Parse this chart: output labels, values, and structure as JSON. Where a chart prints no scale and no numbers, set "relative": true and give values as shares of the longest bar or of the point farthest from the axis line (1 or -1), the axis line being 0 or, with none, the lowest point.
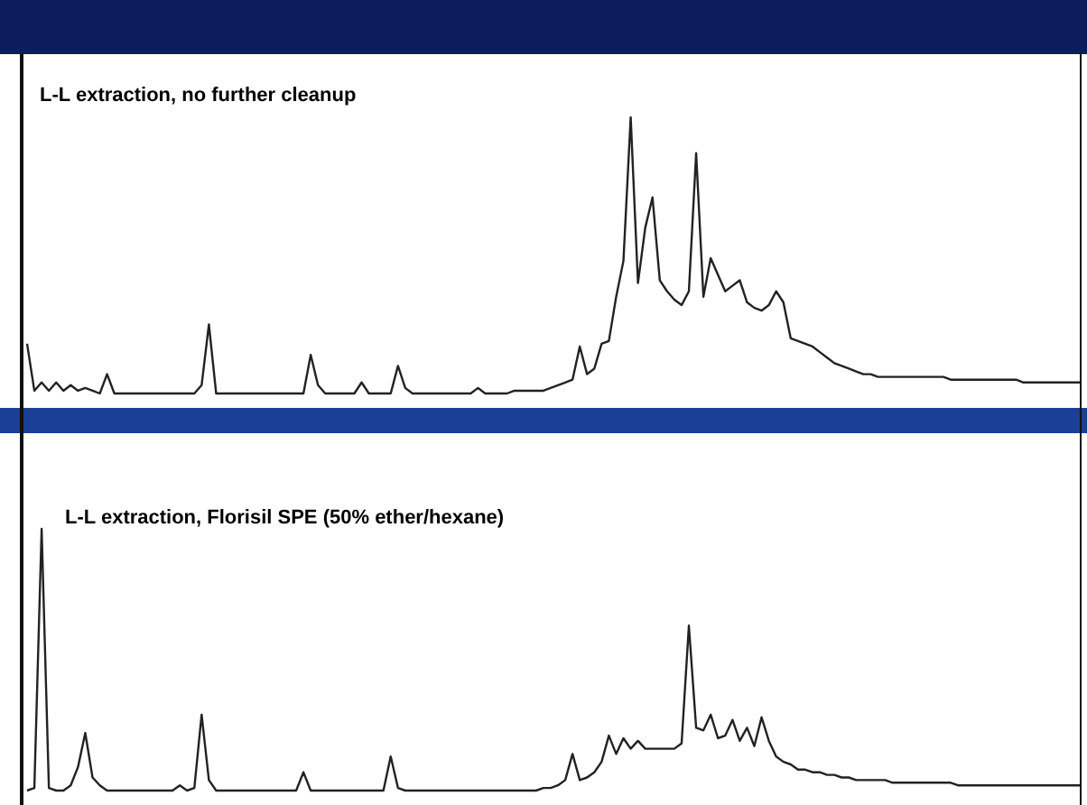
{
  "chart_data": [
    {
      "type": "line",
      "title": "L-L extraction, no further cleanup",
      "relative": true,
      "legend": false,
      "tick_labels": false,
      "categories": [
        null,
        null,
        null,
        null,
        null,
        null,
        null,
        null,
        null,
        null,
        null,
        null,
        null,
        null,
        null,
        null,
        null,
        null,
        null,
        null,
        null,
        null,
        null,
        null,
        null,
        null,
        null,
        null,
        null,
        null,
        null,
        null,
        null,
        null,
        null,
        null,
        null,
        null,
        null,
        null,
        null,
        null,
        null,
        null,
        null,
        null,
        null,
        null,
        null,
        null,
        null,
        null,
        null,
        null,
        null,
        null,
        null,
        null,
        null,
        null,
        null,
        null,
        null,
        null,
        null,
        null,
        null,
        null,
        null,
        null,
        null,
        null,
        null,
        null,
        null,
        null,
        null,
        null,
        null,
        null,
        null,
        null,
        null,
        null,
        null,
        null,
        null,
        null,
        null,
        null,
        null,
        null,
        null,
        null,
        null,
        null,
        null,
        null,
        null,
        null,
        null,
        null,
        null,
        null,
        null,
        null,
        null,
        null,
        null,
        null,
        null,
        null,
        null,
        null,
        null,
        null,
        null,
        null,
        null,
        null,
        null,
        null,
        null,
        null,
        null,
        null,
        null,
        null,
        null,
        null,
        null,
        null,
        null,
        null,
        null,
        null,
        null,
        null,
        null,
        null,
        null,
        null,
        null,
        null,
        null,
        null
      ],
      "series": [
        {
          "color": "#222222",
          "values": [
            0.18,
            0.01,
            0.04,
            0.01,
            0.04,
            0.01,
            0.03,
            0.01,
            0.02,
            0.01,
            0,
            0.07,
            0,
            0,
            0,
            0,
            0,
            0,
            0,
            0,
            0,
            0,
            0,
            0,
            0.03,
            0.25,
            0,
            0,
            0,
            0,
            0,
            0,
            0,
            0,
            0,
            0,
            0,
            0,
            0,
            0.14,
            0.03,
            0,
            0,
            0,
            0,
            0,
            0.04,
            0,
            0,
            0,
            0,
            0.1,
            0.02,
            0,
            0,
            0,
            0,
            0,
            0,
            0,
            0,
            0,
            0.02,
            0,
            0,
            0,
            0,
            0.01,
            0.01,
            0.01,
            0.01,
            0.01,
            0.02,
            0.03,
            0.04,
            0.05,
            0.17,
            0.07,
            0.09,
            0.18,
            0.19,
            0.35,
            0.48,
            1,
            0.4,
            0.6,
            0.71,
            0.41,
            0.37,
            0.34,
            0.32,
            0.37,
            0.87,
            0.35,
            0.49,
            0.43,
            0.37,
            0.39,
            0.41,
            0.33,
            0.31,
            0.3,
            0.32,
            0.37,
            0.33,
            0.2,
            0.19,
            0.18,
            0.17,
            0.15,
            0.13,
            0.11,
            0.1,
            0.09,
            0.08,
            0.07,
            0.07,
            0.06,
            0.06,
            0.06,
            0.06,
            0.06,
            0.06,
            0.06,
            0.06,
            0.06,
            0.06,
            0.05,
            0.05,
            0.05,
            0.05,
            0.05,
            0.05,
            0.05,
            0.05,
            0.05,
            0.05,
            0.04,
            0.04,
            0.04,
            0.04,
            0.04,
            0.04,
            0.04,
            0.04,
            0.04
          ]
        }
      ]
    },
    {
      "type": "line",
      "title": "L-L extraction, Florisil SPE (50% ether/hexane)",
      "relative": true,
      "legend": false,
      "tick_labels": false,
      "categories": [
        null,
        null,
        null,
        null,
        null,
        null,
        null,
        null,
        null,
        null,
        null,
        null,
        null,
        null,
        null,
        null,
        null,
        null,
        null,
        null,
        null,
        null,
        null,
        null,
        null,
        null,
        null,
        null,
        null,
        null,
        null,
        null,
        null,
        null,
        null,
        null,
        null,
        null,
        null,
        null,
        null,
        null,
        null,
        null,
        null,
        null,
        null,
        null,
        null,
        null,
        null,
        null,
        null,
        null,
        null,
        null,
        null,
        null,
        null,
        null,
        null,
        null,
        null,
        null,
        null,
        null,
        null,
        null,
        null,
        null,
        null,
        null,
        null,
        null,
        null,
        null,
        null,
        null,
        null,
        null,
        null,
        null,
        null,
        null,
        null,
        null,
        null,
        null,
        null,
        null,
        null,
        null,
        null,
        null,
        null,
        null,
        null,
        null,
        null,
        null,
        null,
        null,
        null,
        null,
        null,
        null,
        null,
        null,
        null,
        null,
        null,
        null,
        null,
        null,
        null,
        null,
        null,
        null,
        null,
        null,
        null,
        null,
        null,
        null,
        null,
        null,
        null,
        null,
        null,
        null,
        null,
        null,
        null,
        null,
        null,
        null,
        null,
        null,
        null,
        null,
        null,
        null,
        null,
        null,
        null,
        null
      ],
      "series": [
        {
          "color": "#222222",
          "values": [
            0,
            0.01,
            1,
            0.01,
            0,
            0,
            0.02,
            0.09,
            0.22,
            0.05,
            0.02,
            0,
            0,
            0,
            0,
            0,
            0,
            0,
            0,
            0,
            0,
            0.02,
            0,
            0.01,
            0.29,
            0.04,
            0,
            0,
            0,
            0,
            0,
            0,
            0,
            0,
            0,
            0,
            0,
            0,
            0.07,
            0,
            0,
            0,
            0,
            0,
            0,
            0,
            0,
            0,
            0,
            0,
            0.13,
            0.01,
            0,
            0,
            0,
            0,
            0,
            0,
            0,
            0,
            0,
            0,
            0,
            0,
            0,
            0,
            0,
            0,
            0,
            0,
            0,
            0.01,
            0.01,
            0.02,
            0.04,
            0.14,
            0.04,
            0.05,
            0.07,
            0.11,
            0.21,
            0.14,
            0.2,
            0.16,
            0.19,
            0.16,
            0.16,
            0.16,
            0.16,
            0.16,
            0.18,
            0.63,
            0.24,
            0.23,
            0.29,
            0.2,
            0.21,
            0.27,
            0.19,
            0.24,
            0.17,
            0.28,
            0.19,
            0.13,
            0.11,
            0.1,
            0.08,
            0.08,
            0.07,
            0.07,
            0.06,
            0.06,
            0.05,
            0.05,
            0.04,
            0.04,
            0.04,
            0.04,
            0.04,
            0.03,
            0.03,
            0.03,
            0.03,
            0.03,
            0.03,
            0.03,
            0.03,
            0.03,
            0.02,
            0.02,
            0.02,
            0.02,
            0.02,
            0.02,
            0.02,
            0.02,
            0.02,
            0.02,
            0.02,
            0.02,
            0.02,
            0.02,
            0.02,
            0.02,
            0.02,
            0.02
          ]
        }
      ]
    }
  ]
}
